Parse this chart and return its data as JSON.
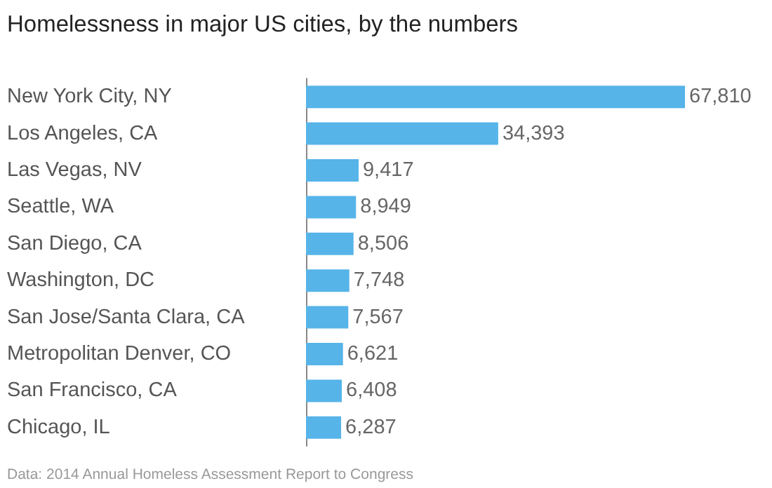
{
  "chart_data": {
    "type": "bar",
    "title": "Homelessness in major US cities, by the numbers",
    "orientation": "horizontal",
    "categories": [
      "New York City, NY",
      "Los Angeles, CA",
      "Las Vegas, NV",
      "Seattle, WA",
      "San Diego, CA",
      "Washington, DC",
      "San Jose/Santa Clara, CA",
      "Metropolitan Denver, CO",
      "San Francisco, CA",
      "Chicago, IL"
    ],
    "values": [
      67810,
      34393,
      9417,
      8949,
      8506,
      7748,
      7567,
      6621,
      6408,
      6287
    ],
    "color": "#56b4e9",
    "value_labels": [
      "67,810",
      "34,393",
      "9,417",
      "8,949",
      "8,506",
      "7,748",
      "7,567",
      "6,621",
      "6,408",
      "6,287"
    ],
    "annotations": [
      "Data: 2014 Annual Homeless Assessment Report to Congress"
    ]
  }
}
